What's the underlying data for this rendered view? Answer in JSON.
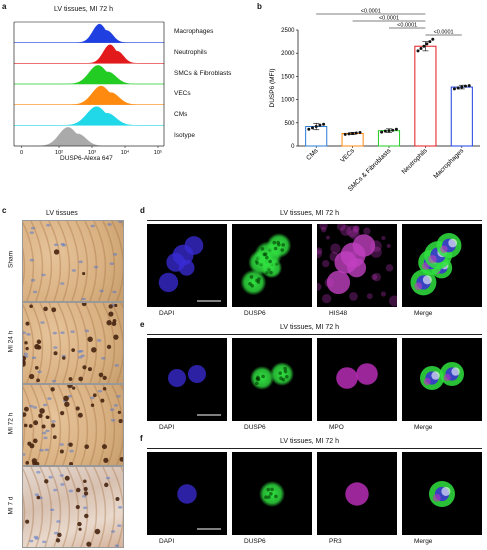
{
  "panel_a": {
    "letter": "a",
    "title": "LV tissues, MI 72 h",
    "xlabel": "DUSP6-Alexa 647",
    "xticks": [
      "0",
      "10²",
      "10³",
      "10⁴",
      "10⁵"
    ],
    "rows": [
      {
        "label": "Macrophages",
        "color": "#1f3fe0"
      },
      {
        "label": "Neutrophils",
        "color": "#e31a1c"
      },
      {
        "label": "SMCs & Fibroblasts",
        "color": "#22cc22"
      },
      {
        "label": "VECs",
        "color": "#ff8a10"
      },
      {
        "label": "CMs",
        "color": "#20d8e8"
      },
      {
        "label": "Isotype",
        "color": "#aaaaaa"
      }
    ]
  },
  "panel_b": {
    "letter": "b",
    "chart_data": {
      "type": "bar",
      "categories": [
        "CMs",
        "VECs",
        "SMCs & Fibroblasts",
        "Neutrophils",
        "Macrophages"
      ],
      "values": [
        420,
        270,
        330,
        2150,
        1270
      ],
      "errors": [
        70,
        25,
        40,
        100,
        40
      ],
      "colors": [
        "#2b7bd6",
        "#ff8a10",
        "#22cc22",
        "#e31a1c",
        "#1f3fe0"
      ],
      "points": [
        [
          360,
          390,
          420,
          450,
          470
        ],
        [
          250,
          260,
          270,
          280,
          290
        ],
        [
          300,
          320,
          330,
          340,
          360
        ],
        [
          2050,
          2100,
          2150,
          2200,
          2250,
          2300
        ],
        [
          1230,
          1250,
          1270,
          1290,
          1300
        ]
      ],
      "ylabel": "DUSP6 (MFI)",
      "ylim": [
        0,
        2500
      ],
      "yticks": [
        "0",
        "500",
        "1000",
        "1500",
        "2000",
        "2500"
      ],
      "sig": [
        "<0.0001",
        "<0.0001",
        "<0.0001",
        "<0.0001"
      ]
    }
  },
  "panel_c": {
    "letter": "c",
    "title": "LV tissues",
    "rows": [
      "Sham",
      "MI 24 h",
      "MI 72 h",
      "MI 7 d"
    ]
  },
  "panel_d": {
    "letter": "d",
    "title": "LV tissues, MI 72 h",
    "labels": [
      "DAPI",
      "DUSP6",
      "HIS48",
      "Merge"
    ]
  },
  "panel_e": {
    "letter": "e",
    "title": "LV tissues, MI 72 h",
    "labels": [
      "DAPI",
      "DUSP6",
      "MPO",
      "Merge"
    ]
  },
  "panel_f": {
    "letter": "f",
    "title": "LV tissues, MI 72 h",
    "labels": [
      "DAPI",
      "DUSP6",
      "PR3",
      "Merge"
    ]
  }
}
